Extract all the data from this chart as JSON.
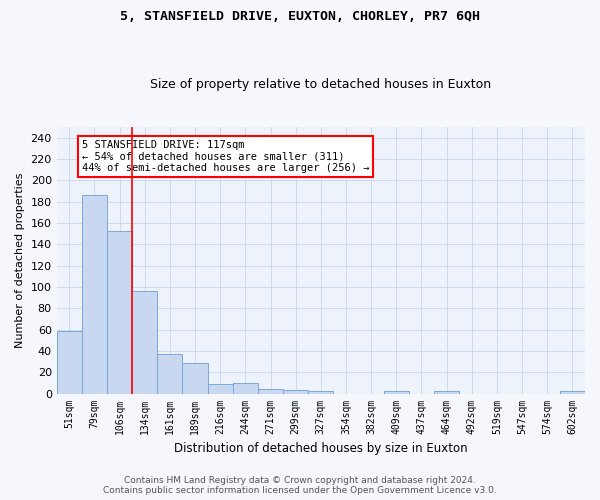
{
  "title": "5, STANSFIELD DRIVE, EUXTON, CHORLEY, PR7 6QH",
  "subtitle": "Size of property relative to detached houses in Euxton",
  "xlabel": "Distribution of detached houses by size in Euxton",
  "ylabel": "Number of detached properties",
  "bar_labels": [
    "51sqm",
    "79sqm",
    "106sqm",
    "134sqm",
    "161sqm",
    "189sqm",
    "216sqm",
    "244sqm",
    "271sqm",
    "299sqm",
    "327sqm",
    "354sqm",
    "382sqm",
    "409sqm",
    "437sqm",
    "464sqm",
    "492sqm",
    "519sqm",
    "547sqm",
    "574sqm",
    "602sqm"
  ],
  "bar_values": [
    59,
    186,
    152,
    96,
    37,
    29,
    9,
    10,
    4,
    3,
    2,
    0,
    0,
    2,
    0,
    2,
    0,
    0,
    0,
    0,
    2
  ],
  "bar_color": "#c8d8f0",
  "bar_edge_color": "#7aa8d8",
  "red_line_x": 2.5,
  "annotation_text": "5 STANSFIELD DRIVE: 117sqm\n← 54% of detached houses are smaller (311)\n44% of semi-detached houses are larger (256) →",
  "annotation_box_color": "white",
  "annotation_box_edge": "red",
  "ylim": [
    0,
    250
  ],
  "yticks": [
    0,
    20,
    40,
    60,
    80,
    100,
    120,
    140,
    160,
    180,
    200,
    220,
    240
  ],
  "grid_color": "#cdd8ee",
  "background_color": "#eef2fa",
  "fig_bg_color": "#f5f7fd",
  "footer_line1": "Contains HM Land Registry data © Crown copyright and database right 2024.",
  "footer_line2": "Contains public sector information licensed under the Open Government Licence v3.0."
}
